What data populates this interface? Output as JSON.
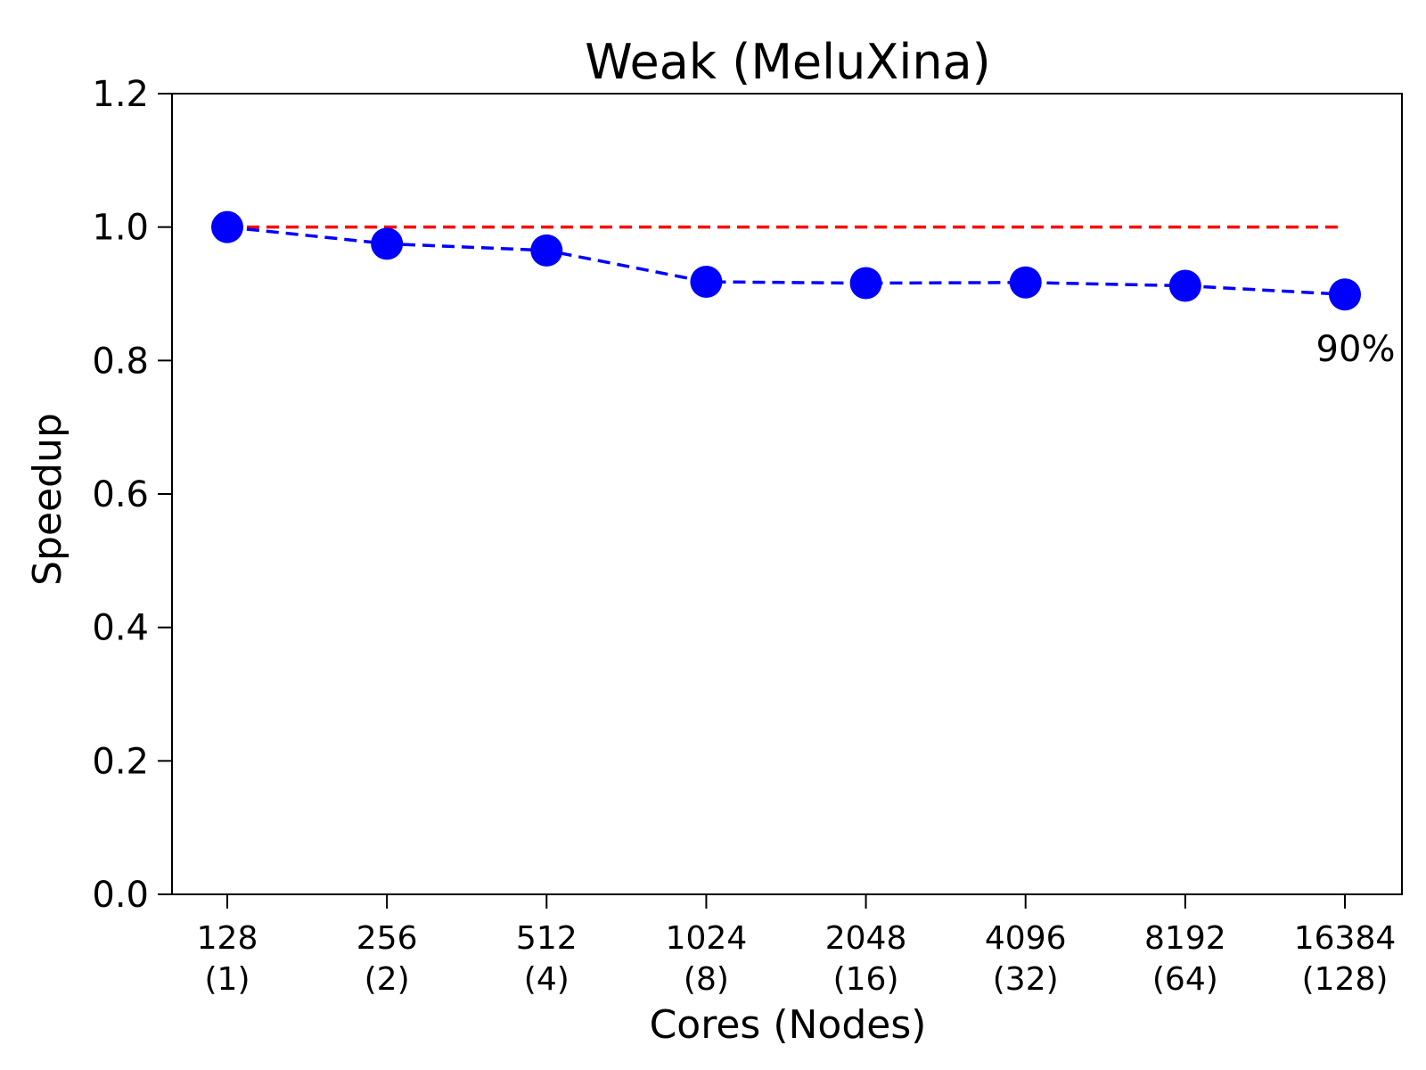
{
  "chart_data": {
    "type": "line",
    "title": "Weak (MeluXina)",
    "xlabel": "Cores (Nodes)",
    "ylabel": "Speedup",
    "ylim": [
      0,
      1.2
    ],
    "yticks": [
      "0.0",
      "0.2",
      "0.4",
      "0.6",
      "0.8",
      "1.0",
      "1.2"
    ],
    "categories": [
      {
        "cores": "128",
        "nodes": "(1)"
      },
      {
        "cores": "256",
        "nodes": "(2)"
      },
      {
        "cores": "512",
        "nodes": "(4)"
      },
      {
        "cores": "1024",
        "nodes": "(8)"
      },
      {
        "cores": "2048",
        "nodes": "(16)"
      },
      {
        "cores": "4096",
        "nodes": "(32)"
      },
      {
        "cores": "8192",
        "nodes": "(64)"
      },
      {
        "cores": "16384",
        "nodes": "(128)"
      }
    ],
    "series": [
      {
        "values": [
          1.0,
          0.975,
          0.965,
          0.918,
          0.916,
          0.917,
          0.912,
          0.899
        ],
        "color": "#0000ff",
        "style": "dashed",
        "marker": "circle"
      },
      {
        "values": [
          1.0,
          1.0,
          1.0,
          1.0,
          1.0,
          1.0,
          1.0,
          1.0
        ],
        "color": "#ff0000",
        "style": "dashed",
        "marker": "none"
      }
    ],
    "annotation": {
      "text": "90%",
      "category_index": 7,
      "value": 0.899
    },
    "grid": false,
    "legend": "none"
  }
}
